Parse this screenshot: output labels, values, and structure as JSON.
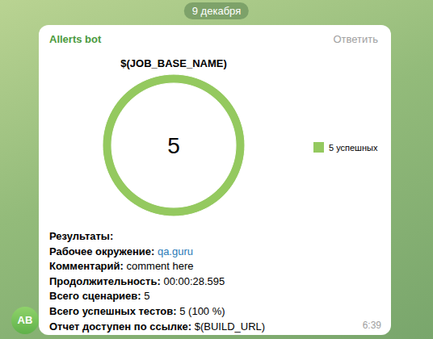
{
  "date": "9 декабря",
  "message": {
    "sender": "Allerts bot",
    "reply": "Ответить",
    "time": "6:39",
    "avatar": "AB",
    "lines": [
      {
        "label": "Результаты:"
      },
      {
        "label": "Рабочее окружение:",
        "value": "qa.guru",
        "link": true
      },
      {
        "label": "Комментарий:",
        "value": "comment here"
      },
      {
        "label": "Продолжительность:",
        "value": "00:00:28.595"
      },
      {
        "label": "Всего сценариев:",
        "value": "5"
      },
      {
        "label": "Всего успешных тестов:",
        "value": "5 (100 %)"
      },
      {
        "label": "Отчет доступен по ссылке:",
        "value": "$(BUILD_URL)"
      }
    ]
  },
  "chart_data": {
    "type": "pie",
    "title": "$(JOB_BASE_NAME)",
    "categories": [
      "5 успешных"
    ],
    "values": [
      5
    ],
    "colors": [
      "#94c95f"
    ],
    "legend": "right",
    "annotations": [
      {
        "text": "5"
      }
    ]
  }
}
